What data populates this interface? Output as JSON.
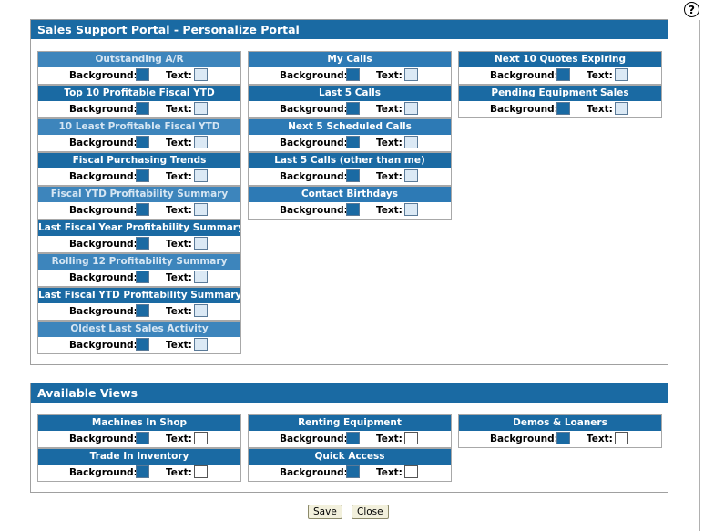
{
  "help_icon": "?",
  "panel_personalize": {
    "title": "Sales Support Portal - Personalize Portal",
    "columns": [
      [
        {
          "name": "Outstanding A/R"
        },
        {
          "name": "Top 10 Profitable Fiscal YTD"
        },
        {
          "name": "10 Least Profitable Fiscal YTD"
        },
        {
          "name": "Fiscal Purchasing Trends"
        },
        {
          "name": "Fiscal YTD Profitability Summary"
        },
        {
          "name": "Last Fiscal Year Profitability Summary"
        },
        {
          "name": "Rolling 12 Profitability Summary"
        },
        {
          "name": "Last Fiscal YTD Profitability Summary"
        },
        {
          "name": "Oldest Last Sales Activity"
        }
      ],
      [
        {
          "name": "My Calls"
        },
        {
          "name": "Last 5 Calls"
        },
        {
          "name": "Next 5 Scheduled Calls"
        },
        {
          "name": "Last 5 Calls (other than me)"
        },
        {
          "name": "Contact Birthdays"
        }
      ],
      [
        {
          "name": "Next 10 Quotes Expiring"
        },
        {
          "name": "Pending Equipment Sales"
        }
      ]
    ]
  },
  "panel_available": {
    "title": "Available Views",
    "columns": [
      [
        {
          "name": "Machines In Shop"
        },
        {
          "name": "Trade In Inventory"
        }
      ],
      [
        {
          "name": "Renting Equipment"
        },
        {
          "name": "Quick Access"
        }
      ],
      [
        {
          "name": "Demos & Loaners"
        }
      ]
    ]
  },
  "labels": {
    "background": "Background:",
    "text": "Text:"
  },
  "buttons": {
    "save": "Save",
    "close": "Close"
  },
  "colors": {
    "header_blue": "#1a6aa3",
    "background_swatch": "#1a6aa3",
    "text_swatch_light": "#dbe9f5",
    "text_swatch_white": "#ffffff"
  }
}
